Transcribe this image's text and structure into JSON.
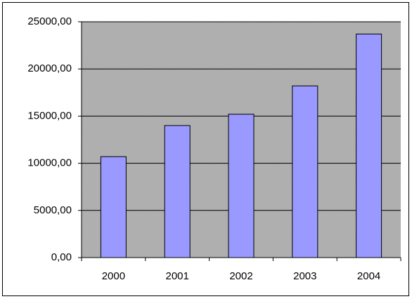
{
  "chart_data": {
    "type": "bar",
    "categories": [
      "2000",
      "2001",
      "2002",
      "2003",
      "2004"
    ],
    "values": [
      10700,
      14000,
      15200,
      18200,
      23700
    ],
    "color": "#9999ff",
    "ylim": [
      0,
      25000
    ],
    "yticks": [
      {
        "value": 0,
        "label": "0,00"
      },
      {
        "value": 5000,
        "label": "5000,00"
      },
      {
        "value": 10000,
        "label": "10000,00"
      },
      {
        "value": 15000,
        "label": "15000,00"
      },
      {
        "value": 20000,
        "label": "20000,00"
      },
      {
        "value": 25000,
        "label": "25000,00"
      }
    ],
    "grid": true
  }
}
